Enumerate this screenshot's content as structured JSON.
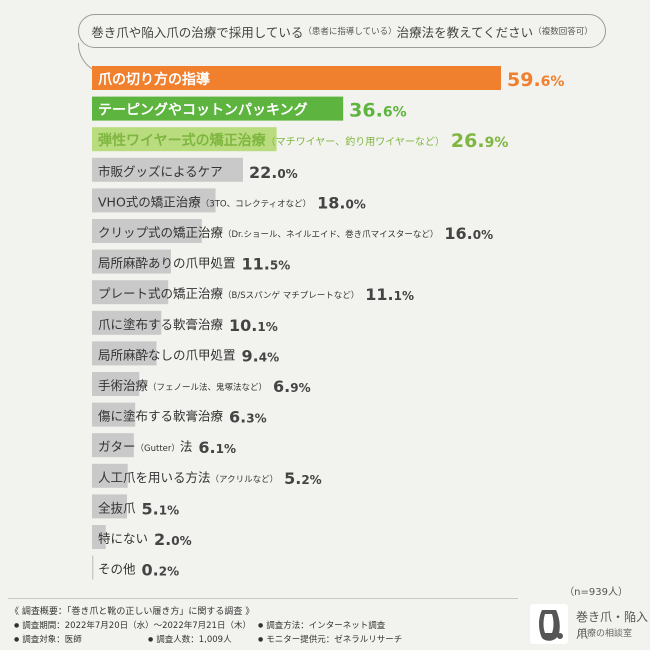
{
  "question": {
    "main1": "巻き爪や陥入爪の治療で採用している",
    "note1": "（患者に指導している）",
    "main2": "治療法を教えてください",
    "note2": "（複数回答可）"
  },
  "chart_data": {
    "type": "bar",
    "orientation": "horizontal",
    "unit": "%",
    "items": [
      {
        "label": "爪の切り方の指導",
        "note": "",
        "value": 59.6,
        "color": "#f07f2e",
        "label_color": "#ffffff",
        "value_color": "#f07f2e"
      },
      {
        "label": "テーピングやコットンパッキング",
        "note": "",
        "value": 36.6,
        "color": "#5db43e",
        "label_color": "#ffffff",
        "value_color": "#5db43e"
      },
      {
        "label": "弾性ワイヤー式の矯正治療",
        "note": "（マチワイヤー、釣り用ワイヤーなど）",
        "value": 26.9,
        "color": "#b9dc7f",
        "label_color": "#7fb640",
        "value_color": "#7fb640"
      },
      {
        "label": "市販グッズによるケア",
        "note": "",
        "value": 22.0,
        "color": "#c9c9c9",
        "label_color": "#333333",
        "value_color": "#444444"
      },
      {
        "label": "VHO式の矯正治療",
        "note": "（3TO、コレクティオなど）",
        "value": 18.0,
        "color": "#c9c9c9",
        "label_color": "#333333",
        "value_color": "#444444"
      },
      {
        "label": "クリップ式の矯正治療",
        "note": "（Dr.ショール、ネイルエイド、巻き爪マイスターなど）",
        "value": 16.0,
        "color": "#c9c9c9",
        "label_color": "#333333",
        "value_color": "#444444"
      },
      {
        "label": "局所麻酔ありの爪甲処置",
        "note": "",
        "value": 11.5,
        "color": "#c9c9c9",
        "label_color": "#333333",
        "value_color": "#444444"
      },
      {
        "label": "プレート式の矯正治療",
        "note": "（B/Sスパンゲ マチプレートなど）",
        "value": 11.1,
        "color": "#c9c9c9",
        "label_color": "#333333",
        "value_color": "#444444"
      },
      {
        "label": "爪に塗布する軟膏治療",
        "note": "",
        "value": 10.1,
        "color": "#c9c9c9",
        "label_color": "#333333",
        "value_color": "#444444"
      },
      {
        "label": "局所麻酔なしの爪甲処置",
        "note": "",
        "value": 9.4,
        "color": "#c9c9c9",
        "label_color": "#333333",
        "value_color": "#444444"
      },
      {
        "label": "手術治療",
        "note": "（フェノール法、鬼塚法など）",
        "value": 6.9,
        "color": "#c9c9c9",
        "label_color": "#333333",
        "value_color": "#444444"
      },
      {
        "label": "傷に塗布する軟膏治療",
        "note": "",
        "value": 6.3,
        "color": "#c9c9c9",
        "label_color": "#333333",
        "value_color": "#444444"
      },
      {
        "label": "ガター",
        "note": "（Gutter）",
        "label_after": "法",
        "value": 6.1,
        "color": "#c9c9c9",
        "label_color": "#333333",
        "value_color": "#444444"
      },
      {
        "label": "人工爪を用いる方法",
        "note": "（アクリルなど）",
        "value": 5.2,
        "color": "#c9c9c9",
        "label_color": "#333333",
        "value_color": "#444444"
      },
      {
        "label": "全抜爪",
        "note": "",
        "value": 5.1,
        "color": "#c9c9c9",
        "label_color": "#333333",
        "value_color": "#444444"
      },
      {
        "label": "特にない",
        "note": "",
        "value": 2.0,
        "color": "#c9c9c9",
        "label_color": "#333333",
        "value_color": "#444444"
      },
      {
        "label": "その他",
        "note": "",
        "value": 0.2,
        "color": "#c9c9c9",
        "label_color": "#333333",
        "value_color": "#444444"
      }
    ]
  },
  "sample_note": "（n=939人）",
  "survey": {
    "title": "《 調査概要：「巻き爪と靴の正しい履き方」に関する調査 》",
    "period": "調査期間：2022年7月20日（水）～2022年7月21日（木）",
    "method": "調査方法：インターネット調査",
    "target": "調査対象：医師",
    "count": "調査人数：1,009人",
    "provider": "モニター提供元：ゼネラルリサーチ"
  },
  "logo": {
    "line1": "巻き爪・陥入爪",
    "line2": "治療の相談室"
  }
}
